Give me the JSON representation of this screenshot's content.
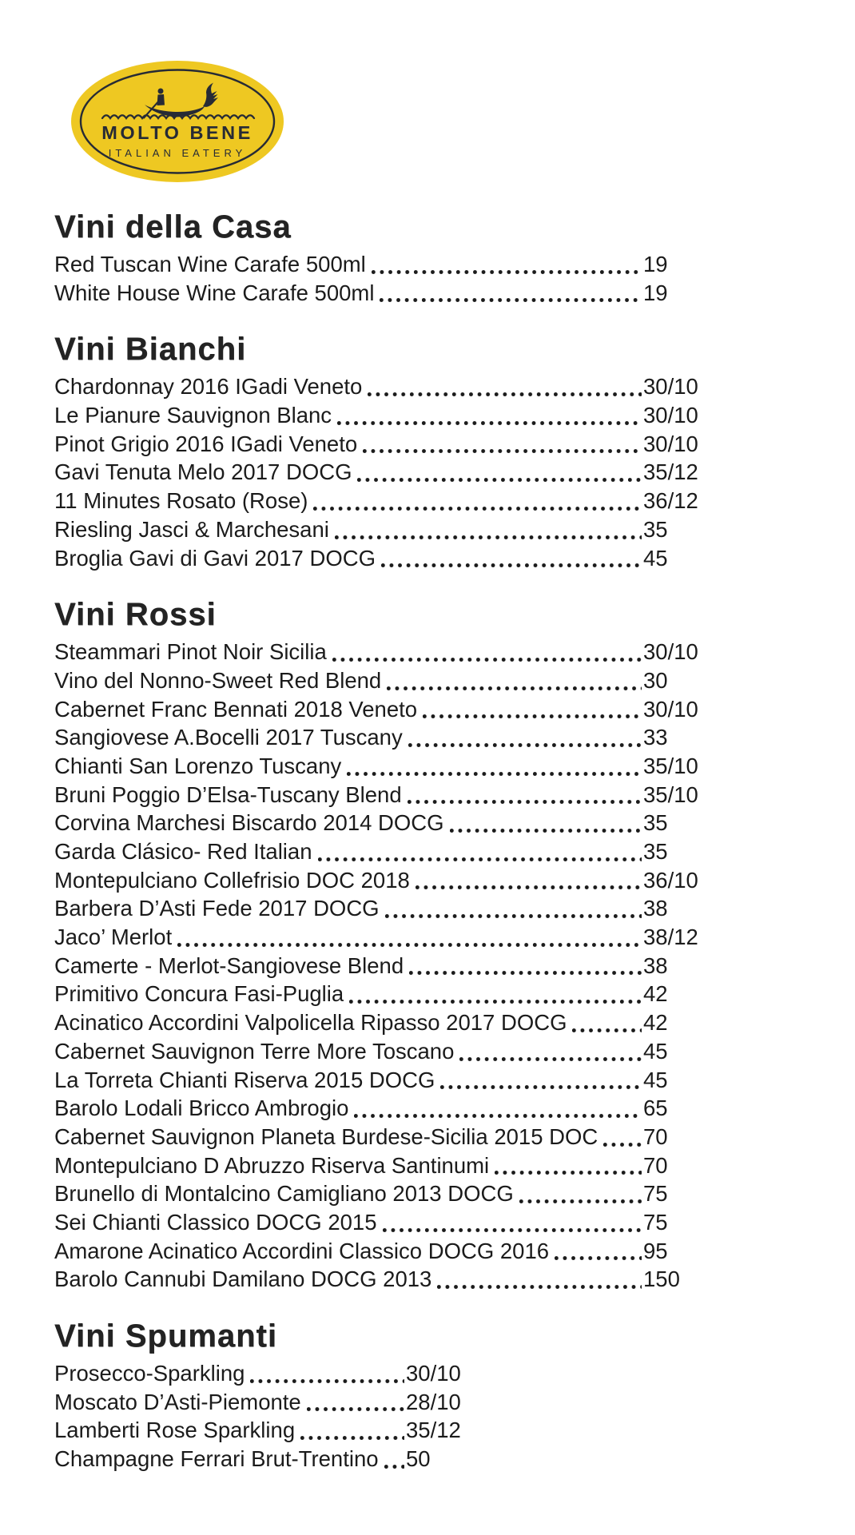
{
  "logo": {
    "title": "MOLTO BENE",
    "subtitle": "ITALIAN EATERY",
    "icon": "gondola-icon",
    "colors": {
      "gold": "#eec822",
      "ink": "#272b35"
    }
  },
  "menu": {
    "sections": [
      {
        "title": "Vini della Casa",
        "items": [
          {
            "name": "Red Tuscan Wine Carafe 500ml",
            "price": "19"
          },
          {
            "name": "White House Wine Carafe 500ml",
            "price": "19"
          }
        ]
      },
      {
        "title": "Vini Bianchi",
        "items": [
          {
            "name": "Chardonnay 2016 IGadi Veneto",
            "price": "30/10"
          },
          {
            "name": "Le Pianure Sauvignon Blanc",
            "price": "30/10"
          },
          {
            "name": "Pinot Grigio 2016 IGadi Veneto",
            "price": "30/10"
          },
          {
            "name": "Gavi Tenuta Melo 2017 DOCG",
            "price": "35/12"
          },
          {
            "name": "11 Minutes Rosato (Rose)",
            "price": "36/12"
          },
          {
            "name": "Riesling Jasci & Marchesani",
            "price": "35"
          },
          {
            "name": "Broglia Gavi di Gavi 2017 DOCG",
            "price": "45"
          }
        ]
      },
      {
        "title": "Vini Rossi",
        "items": [
          {
            "name": "Steammari Pinot Noir Sicilia",
            "price": "30/10"
          },
          {
            "name": "Vino del Nonno-Sweet Red Blend",
            "price": "30"
          },
          {
            "name": "Cabernet Franc Bennati 2018 Veneto",
            "price": "30/10"
          },
          {
            "name": "Sangiovese A.Bocelli 2017 Tuscany",
            "price": "33"
          },
          {
            "name": "Chianti San Lorenzo Tuscany",
            "price": "35/10"
          },
          {
            "name": "Bruni Poggio D’Elsa-Tuscany Blend",
            "price": "35/10"
          },
          {
            "name": "Corvina Marchesi Biscardo 2014 DOCG",
            "price": "35"
          },
          {
            "name": "Garda Clásico- Red Italian",
            "price": "35"
          },
          {
            "name": "Montepulciano Collefrisio DOC 2018",
            "price": "36/10"
          },
          {
            "name": "Barbera D’Asti Fede 2017 DOCG",
            "price": "38"
          },
          {
            "name": "Jaco’ Merlot",
            "price": "38/12"
          },
          {
            "name": "Camerte - Merlot-Sangiovese Blend",
            "price": "38"
          },
          {
            "name": "Primitivo Concura Fasi-Puglia",
            "price": "42"
          },
          {
            "name": "Acinatico Accordini Valpolicella Ripasso 2017 DOCG",
            "price": "42"
          },
          {
            "name": "Cabernet Sauvignon Terre More Toscano",
            "price": "45"
          },
          {
            "name": "La Torreta Chianti Riserva 2015 DOCG",
            "price": "45"
          },
          {
            "name": "Barolo Lodali Bricco Ambrogio",
            "price": "65"
          },
          {
            "name": "Cabernet Sauvignon Planeta Burdese-Sicilia 2015 DOC",
            "price": "70"
          },
          {
            "name": "Montepulciano D Abruzzo Riserva Santinumi",
            "price": "70"
          },
          {
            "name": "Brunello di Montalcino Camigliano 2013 DOCG",
            "price": "75"
          },
          {
            "name": "Sei Chianti Classico DOCG 2015",
            "price": "75"
          },
          {
            "name": "Amarone Acinatico Accordini Classico DOCG 2016",
            "price": "95"
          },
          {
            "name": "Barolo Cannubi Damilano DOCG 2013",
            "price": "150"
          }
        ]
      },
      {
        "title": "Vini Spumanti",
        "items": [
          {
            "name": "Prosecco-Sparkling",
            "price": "30/10"
          },
          {
            "name": "Moscato D’Asti-Piemonte",
            "price": "28/10"
          },
          {
            "name": "Lamberti Rose Sparkling",
            "price": "35/12"
          },
          {
            "name": "Champagne Ferrari Brut-Trentino",
            "price": "50"
          }
        ]
      }
    ]
  }
}
